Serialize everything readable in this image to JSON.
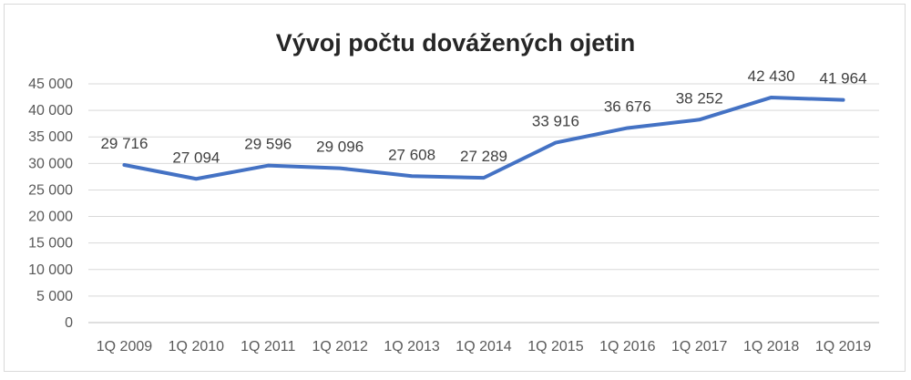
{
  "chart_data": {
    "type": "line",
    "title": "Vývoj počtu dovážených ojetin",
    "xlabel": "",
    "ylabel": "",
    "categories": [
      "1Q 2009",
      "1Q 2010",
      "1Q 2011",
      "1Q 2012",
      "1Q 2013",
      "1Q 2014",
      "1Q 2015",
      "1Q 2016",
      "1Q 2017",
      "1Q 2018",
      "1Q 2019"
    ],
    "series": [
      {
        "values": [
          29716,
          27094,
          29596,
          29096,
          27608,
          27289,
          33916,
          36676,
          38252,
          42430,
          41964
        ],
        "data_labels": [
          "29 716",
          "27 094",
          "29 596",
          "29 096",
          "27 608",
          "27 289",
          "33 916",
          "36 676",
          "38 252",
          "42 430",
          "41 964"
        ],
        "color": "#4472c4"
      }
    ],
    "ylim": [
      0,
      45000
    ],
    "y_ticks": [
      0,
      5000,
      10000,
      15000,
      20000,
      25000,
      30000,
      35000,
      40000,
      45000
    ],
    "y_tick_labels": [
      "0",
      "5 000",
      "10 000",
      "15 000",
      "20 000",
      "25 000",
      "30 000",
      "35 000",
      "40 000",
      "45 000"
    ],
    "grid": true,
    "legend": "none"
  }
}
